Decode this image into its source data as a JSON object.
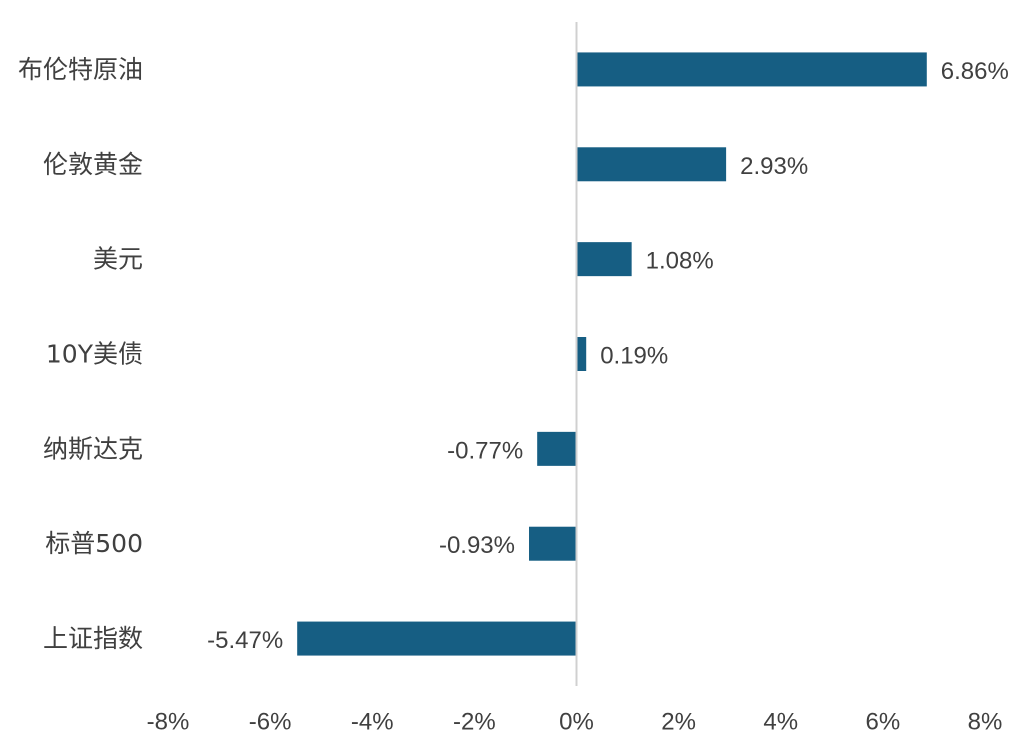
{
  "chart_data": {
    "type": "bar",
    "orientation": "horizontal",
    "categories": [
      "布伦特原油",
      "伦敦黄金",
      "美元",
      "10Y美债",
      "纳斯达克",
      "标普500",
      "上证指数"
    ],
    "values": [
      6.86,
      2.93,
      1.08,
      0.19,
      -0.77,
      -0.93,
      -5.47
    ],
    "data_labels": [
      "6.86%",
      "2.93%",
      "1.08%",
      "0.19%",
      "-0.77%",
      "-0.93%",
      "-5.47%"
    ],
    "xlim": [
      -8,
      8
    ],
    "x_ticks": [
      -8,
      -6,
      -4,
      -2,
      0,
      2,
      4,
      6,
      8
    ],
    "x_tick_labels": [
      "-8%",
      "-6%",
      "-4%",
      "-2%",
      "0%",
      "2%",
      "4%",
      "6%",
      "8%"
    ],
    "bar_color": "#165e83",
    "grid": false,
    "legend": "none"
  }
}
